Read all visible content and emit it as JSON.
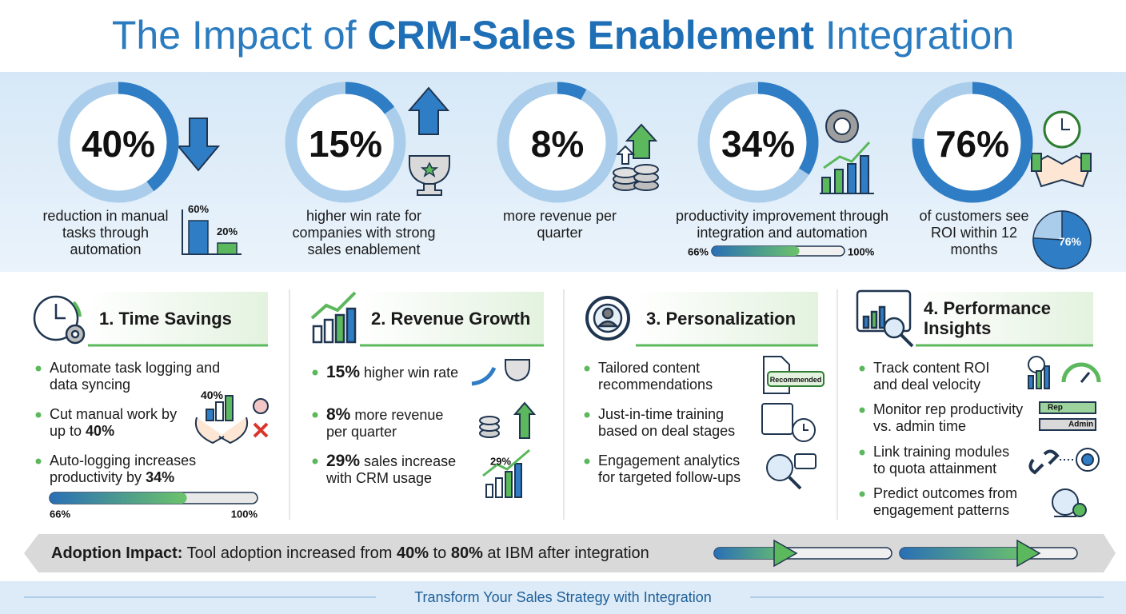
{
  "header": {
    "title": [
      {
        "text": "The Impact of "
      },
      {
        "bold": "CRM-Sales Enablement"
      },
      {
        "text": " Integration"
      }
    ]
  },
  "stats": [
    {
      "value": 40,
      "label": "40%",
      "description": "reduction in manual tasks through automation",
      "chart": {
        "bars": [
          {
            "value": 60,
            "label": "60%"
          },
          {
            "value": 20,
            "label": "20%"
          }
        ]
      }
    },
    {
      "value": 15,
      "label": "15%",
      "description": "higher win rate for companies with strong sales enablement"
    },
    {
      "value": 8,
      "label": "8%",
      "description": "more revenue per quarter"
    },
    {
      "value": 34,
      "label": "34%",
      "description": "productivity improvement through integration and automation",
      "progress": {
        "fill": {
          "value": 66,
          "label": "66%"
        },
        "total": {
          "value": 100,
          "label": "100%"
        }
      }
    },
    {
      "value": 76,
      "label": "76%",
      "description": "of customers see ROI within 12 months",
      "pie": {
        "value": 76,
        "label": "76%"
      }
    }
  ],
  "cards": [
    {
      "title": "1. Time Savings",
      "bullets": [
        [
          {
            "text": "Automate task logging and data syncing"
          }
        ],
        [
          {
            "text": "Cut manual work by up to "
          },
          {
            "bold": "40%"
          }
        ],
        [
          {
            "text": "Auto-logging increases productivity by "
          },
          {
            "bold": "34%"
          }
        ]
      ],
      "figure_label": "40%",
      "progress": {
        "fill": {
          "value": 66,
          "label": "66%"
        },
        "total": {
          "value": 100,
          "label": "100%"
        }
      }
    },
    {
      "title": "2. Revenue Growth",
      "bullets": [
        [
          {
            "bold": "15%"
          },
          {
            "text": " higher win rate"
          }
        ],
        [
          {
            "bold": "8%"
          },
          {
            "text": " more revenue per quarter"
          }
        ],
        [
          {
            "bold": "29%"
          },
          {
            "text": " sales increase with CRM usage"
          }
        ]
      ],
      "figure_label": "29%"
    },
    {
      "title": "3. Personalization",
      "bullets": [
        [
          {
            "text": "Tailored content recommendations"
          }
        ],
        [
          {
            "text": "Just-in-time training based on deal stages"
          }
        ],
        [
          {
            "text": "Engagement analytics for targeted follow-ups"
          }
        ]
      ],
      "figure_label": "Recommended"
    },
    {
      "title": "4. Performance Insights",
      "bullets": [
        [
          {
            "text": "Track content ROI and deal velocity"
          }
        ],
        [
          {
            "text": "Monitor rep productivity vs. admin time"
          }
        ],
        [
          {
            "text": "Link training modules to quota attainment"
          }
        ],
        [
          {
            "text": "Predict outcomes from engagement patterns"
          }
        ]
      ],
      "figure_labels": [
        "Rep",
        "Admin"
      ]
    }
  ],
  "banner": [
    {
      "bold": "Adoption Impact:"
    },
    {
      "text": " Tool adoption increased from "
    },
    {
      "bold": "40%"
    },
    {
      "text": " to "
    },
    {
      "bold": "80%"
    },
    {
      "text": " at IBM after integration"
    }
  ],
  "footer": "Transform Your Sales Strategy with Integration"
}
